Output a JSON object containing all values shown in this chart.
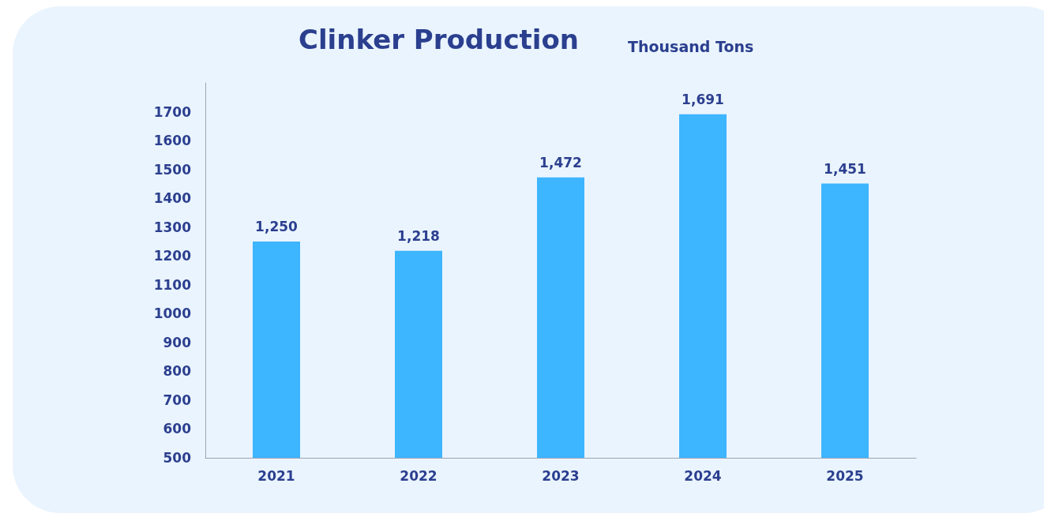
{
  "chart_data": {
    "type": "bar",
    "title": "Clinker Production",
    "subtitle": "Thousand Tons",
    "categories": [
      "2021",
      "2022",
      "2023",
      "2024",
      "2025"
    ],
    "values": [
      1250,
      1218,
      1472,
      1691,
      1451
    ],
    "value_labels": [
      "1,250",
      "1,218",
      "1,472",
      "1,691",
      "1,451"
    ],
    "color": "#3db5ff",
    "ylim": [
      500,
      1800
    ],
    "yticks": [
      500,
      600,
      700,
      800,
      900,
      1000,
      1100,
      1200,
      1300,
      1400,
      1500,
      1600,
      1700
    ],
    "grid": false
  }
}
